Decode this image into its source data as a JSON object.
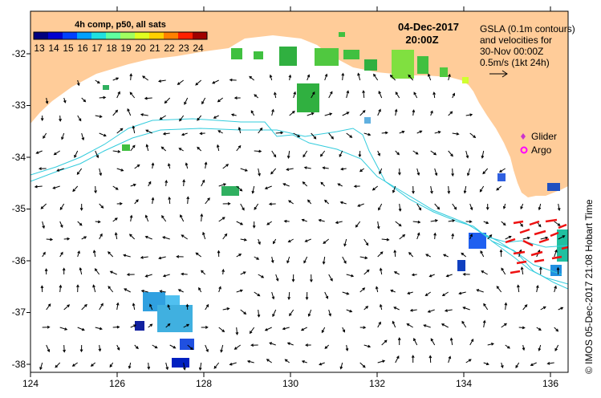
{
  "map": {
    "date": "04-Dec-2017",
    "time": "20:00Z",
    "colorbar": {
      "title": "4h comp, p50, all sats",
      "ticks": [
        "13",
        "14",
        "15",
        "16",
        "17",
        "18",
        "19",
        "20",
        "21",
        "22",
        "23",
        "24"
      ],
      "colors": [
        "#00007f",
        "#0000d0",
        "#0040ff",
        "#00a0ff",
        "#20e0e0",
        "#60ff9f",
        "#a0ff60",
        "#e0ff20",
        "#ffd000",
        "#ff8000",
        "#ff2000",
        "#a00000"
      ]
    },
    "info_lines": [
      "GSLA (0.1m contours)",
      "and velocities for",
      "30-Nov 00:00Z",
      "0.5m/s (1kt 24h)"
    ],
    "legend": {
      "glider": "Glider",
      "argo": "Argo"
    },
    "x_ticks": [
      "124",
      "126",
      "128",
      "130",
      "132",
      "134",
      "136"
    ],
    "y_ticks": [
      "-32",
      "-33",
      "-34",
      "-35",
      "-36",
      "-37",
      "-38"
    ],
    "credit": "© IMOS 05-Dec-2017 21:08 Hobart Time",
    "colors": {
      "land": "#ffcc99",
      "contour": "#33ccdd",
      "vector": "#000000",
      "glider": "#cc33cc",
      "argo": "#ff00ff",
      "drift": "#ee1111"
    }
  }
}
